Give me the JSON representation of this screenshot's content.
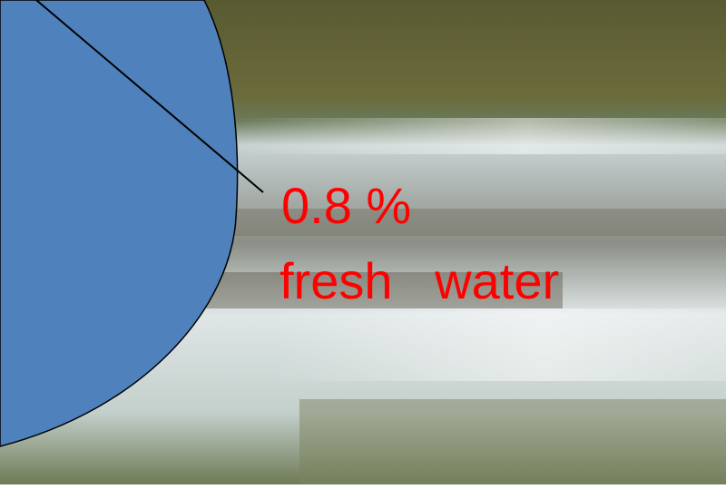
{
  "callout": {
    "percent": "0.8 %",
    "caption": "fresh   water"
  }
}
